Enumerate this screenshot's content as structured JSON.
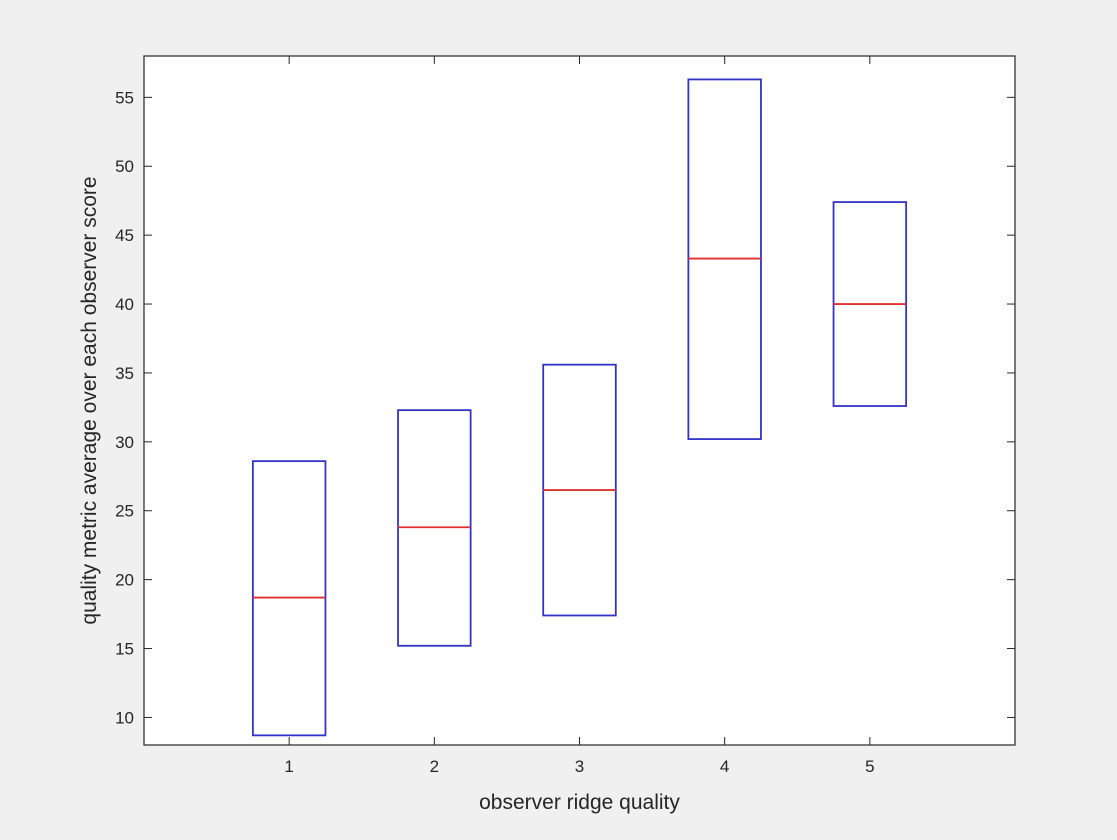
{
  "colors": {
    "figure_background": "#f0f0f0",
    "axes_background": "#ffffff",
    "axes_edge": "#262626",
    "box_color": "#3333cc",
    "median_color": "#e03030"
  },
  "chart_data": {
    "type": "box",
    "xlabel": "observer ridge quality",
    "ylabel": "quality metric average over each observer score",
    "xlim": [
      0,
      6
    ],
    "ylim": [
      8,
      58
    ],
    "xticks": [
      "1",
      "2",
      "3",
      "4",
      "5"
    ],
    "yticks": [
      10,
      15,
      20,
      25,
      30,
      35,
      40,
      45,
      50,
      55
    ],
    "grid": false,
    "boxes": [
      {
        "x": 1,
        "q1": 8.7,
        "median": 18.7,
        "q3": 28.6
      },
      {
        "x": 2,
        "q1": 15.2,
        "median": 23.8,
        "q3": 32.3
      },
      {
        "x": 3,
        "q1": 17.4,
        "median": 26.5,
        "q3": 35.6
      },
      {
        "x": 4,
        "q1": 30.2,
        "median": 43.3,
        "q3": 56.3
      },
      {
        "x": 5,
        "q1": 32.6,
        "median": 40.0,
        "q3": 47.4
      }
    ]
  }
}
